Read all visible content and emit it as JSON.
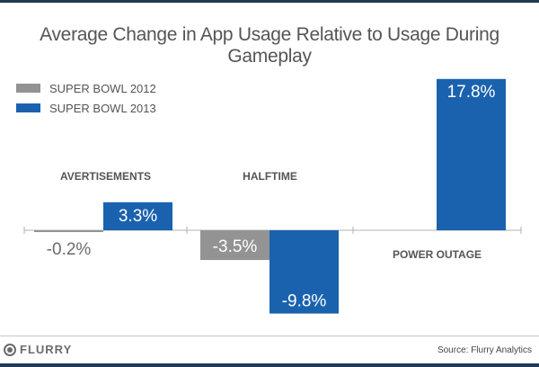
{
  "title": "Average Change in App Usage Relative to Usage During Gameplay",
  "legend": [
    {
      "label": "SUPER BOWL 2012",
      "color": "#939393"
    },
    {
      "label": "SUPER BOWL 2013",
      "color": "#1a62ae"
    }
  ],
  "footer": {
    "logo_text": "FLURRY",
    "source": "Source: Flurry Analytics"
  },
  "chart_data": {
    "type": "bar",
    "title": "Average Change in App Usage Relative to Usage During Gameplay",
    "xlabel": "",
    "ylabel": "",
    "categories": [
      "AVERTISEMENTS",
      "HALFTIME",
      "POWER OUTAGE"
    ],
    "series": [
      {
        "name": "SUPER BOWL 2012",
        "color": "#939393",
        "values": [
          -0.2,
          -3.5,
          null
        ],
        "labels": [
          "-0.2%",
          "-3.5%",
          null
        ]
      },
      {
        "name": "SUPER BOWL 2013",
        "color": "#1a62ae",
        "values": [
          3.3,
          -9.8,
          17.8
        ],
        "labels": [
          "3.3%",
          "-9.8%",
          "17.8%"
        ]
      }
    ],
    "ylim": [
      -10,
      18
    ],
    "grid": false,
    "legend_position": "top-left",
    "unit": "%"
  }
}
